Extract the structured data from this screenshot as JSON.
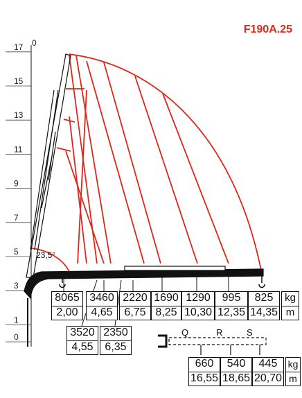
{
  "model": "F190A.25",
  "angle_label": "23,5°",
  "y_axis": [
    "0",
    "1",
    "3",
    "5",
    "7",
    "9",
    "11",
    "13",
    "15",
    "17"
  ],
  "y_top": "0",
  "units": {
    "load": "kg",
    "reach": "m"
  },
  "load_points_row1": [
    {
      "load": "8065",
      "reach": "2,00"
    },
    {
      "load": "3460",
      "reach": "4,65"
    },
    {
      "load": "2220",
      "reach": "6,75"
    },
    {
      "load": "1690",
      "reach": "8,25"
    },
    {
      "load": "1290",
      "reach": "10,30"
    },
    {
      "load": "995",
      "reach": "12,35"
    },
    {
      "load": "825",
      "reach": "14,35"
    }
  ],
  "load_points_row2": [
    {
      "load": "3520",
      "reach": "4,55"
    },
    {
      "load": "2350",
      "reach": "6,35"
    }
  ],
  "extension_labels": [
    "Q",
    "R",
    "S"
  ],
  "load_points_row3": [
    {
      "load": "660",
      "reach": "16,55"
    },
    {
      "load": "540",
      "reach": "18,65"
    },
    {
      "load": "445",
      "reach": "20,70"
    }
  ],
  "colors": {
    "accent": "#e0261b",
    "ink": "#111111"
  }
}
